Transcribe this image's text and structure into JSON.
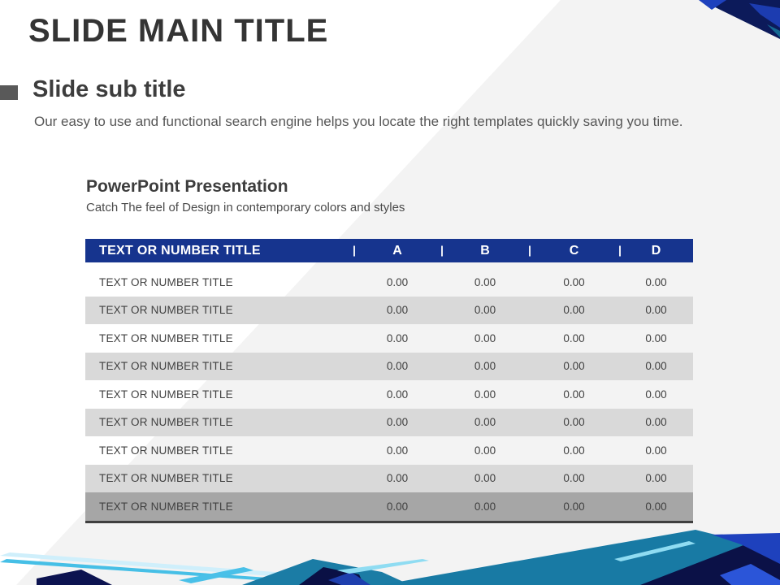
{
  "slide": {
    "main_title": "SLIDE MAIN TITLE",
    "sub_title": "Slide sub title",
    "description": "Our easy to use and functional search engine helps you locate the right templates quickly  saving you time.",
    "section": {
      "heading": "PowerPoint Presentation",
      "subheading": "Catch The feel of Design in contemporary colors and styles"
    }
  },
  "table": {
    "header": {
      "label": "TEXT OR NUMBER TITLE",
      "columns": [
        "A",
        "B",
        "C",
        "D"
      ]
    },
    "rows": [
      {
        "label": "TEXT OR NUMBER TITLE",
        "values": [
          "0.00",
          "0.00",
          "0.00",
          "0.00"
        ]
      },
      {
        "label": "TEXT OR NUMBER TITLE",
        "values": [
          "0.00",
          "0.00",
          "0.00",
          "0.00"
        ]
      },
      {
        "label": "TEXT OR NUMBER TITLE",
        "values": [
          "0.00",
          "0.00",
          "0.00",
          "0.00"
        ]
      },
      {
        "label": "TEXT OR NUMBER TITLE",
        "values": [
          "0.00",
          "0.00",
          "0.00",
          "0.00"
        ]
      },
      {
        "label": "TEXT OR NUMBER TITLE",
        "values": [
          "0.00",
          "0.00",
          "0.00",
          "0.00"
        ]
      },
      {
        "label": "TEXT OR NUMBER TITLE",
        "values": [
          "0.00",
          "0.00",
          "0.00",
          "0.00"
        ]
      },
      {
        "label": "TEXT OR NUMBER TITLE",
        "values": [
          "0.00",
          "0.00",
          "0.00",
          "0.00"
        ]
      },
      {
        "label": "TEXT OR NUMBER TITLE",
        "values": [
          "0.00",
          "0.00",
          "0.00",
          "0.00"
        ]
      },
      {
        "label": "TEXT OR NUMBER TITLE",
        "values": [
          "0.00",
          "0.00",
          "0.00",
          "0.00"
        ]
      }
    ]
  },
  "colors": {
    "table_header_blue": "#16348e",
    "row_alt_gray": "#d9d9d9",
    "row_total_gray": "#a6a6a6",
    "total_border": "#3f3f3f",
    "accent_teal": "#1b7ca5",
    "accent_navy": "#0c1350",
    "accent_royal": "#1e41bd",
    "accent_cyan": "#49c0e8",
    "backdrop_gray": "#f3f3f3",
    "text_dark": "#3d3d3d",
    "text_body": "#565656"
  }
}
